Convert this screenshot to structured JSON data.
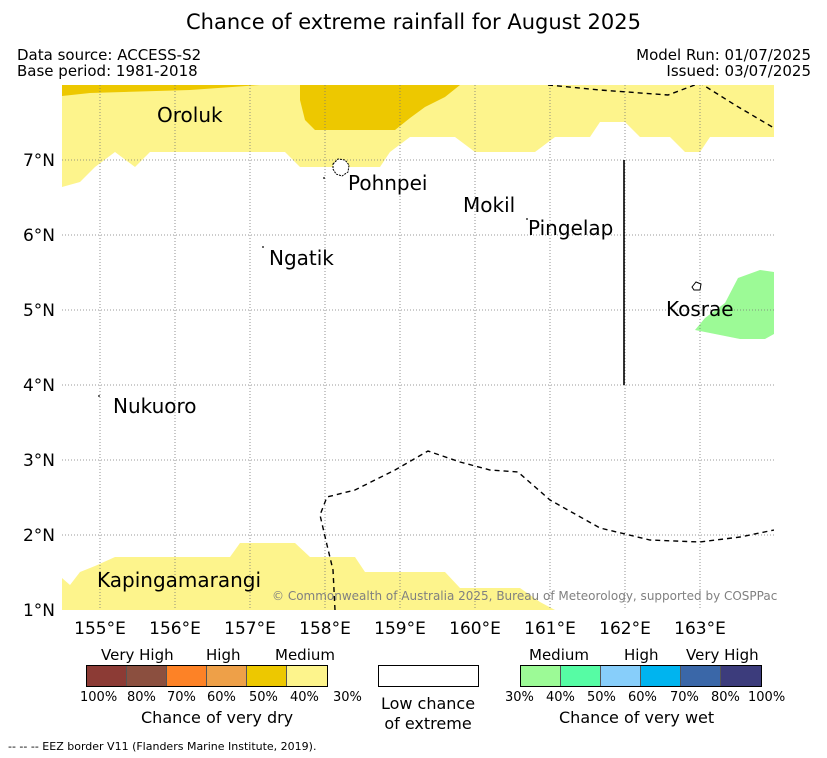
{
  "title": "Chance of extreme rainfall for August 2025",
  "header": {
    "data_source": "Data source: ACCESS-S2",
    "base_period": "Base period: 1981-2018",
    "model_run": "Model Run: 01/07/2025",
    "issued": "Issued: 03/07/2025"
  },
  "map": {
    "lat_labels": [
      "7°N",
      "6°N",
      "5°N",
      "4°N",
      "3°N",
      "2°N",
      "1°N"
    ],
    "lon_labels": [
      "155°E",
      "156°E",
      "157°E",
      "158°E",
      "159°E",
      "160°E",
      "161°E",
      "162°E",
      "163°E"
    ],
    "places": [
      "Oroluk",
      "Pohnpei",
      "Mokil",
      "Pingelap",
      "Ngatik",
      "Kosrae",
      "Nukuoro",
      "Kapingamarangi"
    ],
    "copyright": "© Commonwealth of Australia 2025, Bureau of Meteorology, supported by COSPPac",
    "colors": {
      "dry_30": "#fdf48c",
      "dry_40": "#edc800",
      "wet_30": "#9cfa96"
    }
  },
  "legend": {
    "dry": {
      "headers": [
        "Very High",
        "High",
        "Medium"
      ],
      "colors": [
        "#8c3b35",
        "#8b4f3f",
        "#fd8226",
        "#eea048",
        "#edc800",
        "#fdf48c"
      ],
      "ticks": [
        "100%",
        "80%",
        "70%",
        "60%",
        "50%",
        "40%",
        "30%"
      ],
      "caption": "Chance of very dry"
    },
    "low": {
      "line1": "Low chance",
      "line2": "of extreme"
    },
    "wet": {
      "headers": [
        "Medium",
        "High",
        "Very High"
      ],
      "colors": [
        "#9cfa96",
        "#56fca4",
        "#87cefa",
        "#00b4ef",
        "#3a67a8",
        "#3c3c7c"
      ],
      "ticks": [
        "30%",
        "40%",
        "50%",
        "60%",
        "70%",
        "80%",
        "100%"
      ],
      "caption": "Chance of very wet"
    }
  },
  "footer": "-- -- -- EEZ border V11 (Flanders Marine Institute, 2019)."
}
